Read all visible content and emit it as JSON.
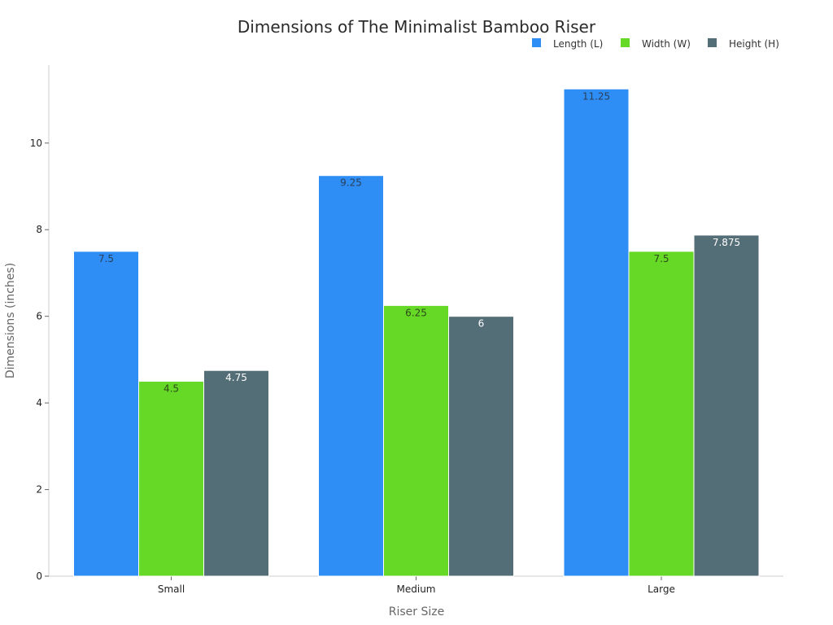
{
  "chart_data": {
    "type": "bar",
    "title": "Dimensions of The Minimalist Bamboo Riser",
    "xlabel": "Riser Size",
    "ylabel": "Dimensions (inches)",
    "categories": [
      "Small",
      "Medium",
      "Large"
    ],
    "ylim": [
      0,
      11.8
    ],
    "yticks": [
      0,
      2,
      4,
      6,
      8,
      10
    ],
    "legend_position": "top-right",
    "grid": false,
    "series": [
      {
        "name": "Length (L)",
        "color": "#2f8ef5",
        "label_color": "#2a3f5a",
        "values": [
          7.5,
          9.25,
          11.25
        ],
        "labels": [
          "7.5",
          "9.25",
          "11.25"
        ]
      },
      {
        "name": "Width (W)",
        "color": "#66d926",
        "label_color": "#2c4a1a",
        "values": [
          4.5,
          6.25,
          7.5
        ],
        "labels": [
          "4.5",
          "6.25",
          "7.5"
        ]
      },
      {
        "name": "Height (H)",
        "color": "#546e78",
        "label_color": "#ffffff",
        "values": [
          4.75,
          6,
          7.875
        ],
        "labels": [
          "4.75",
          "6",
          "7.875"
        ]
      }
    ]
  }
}
